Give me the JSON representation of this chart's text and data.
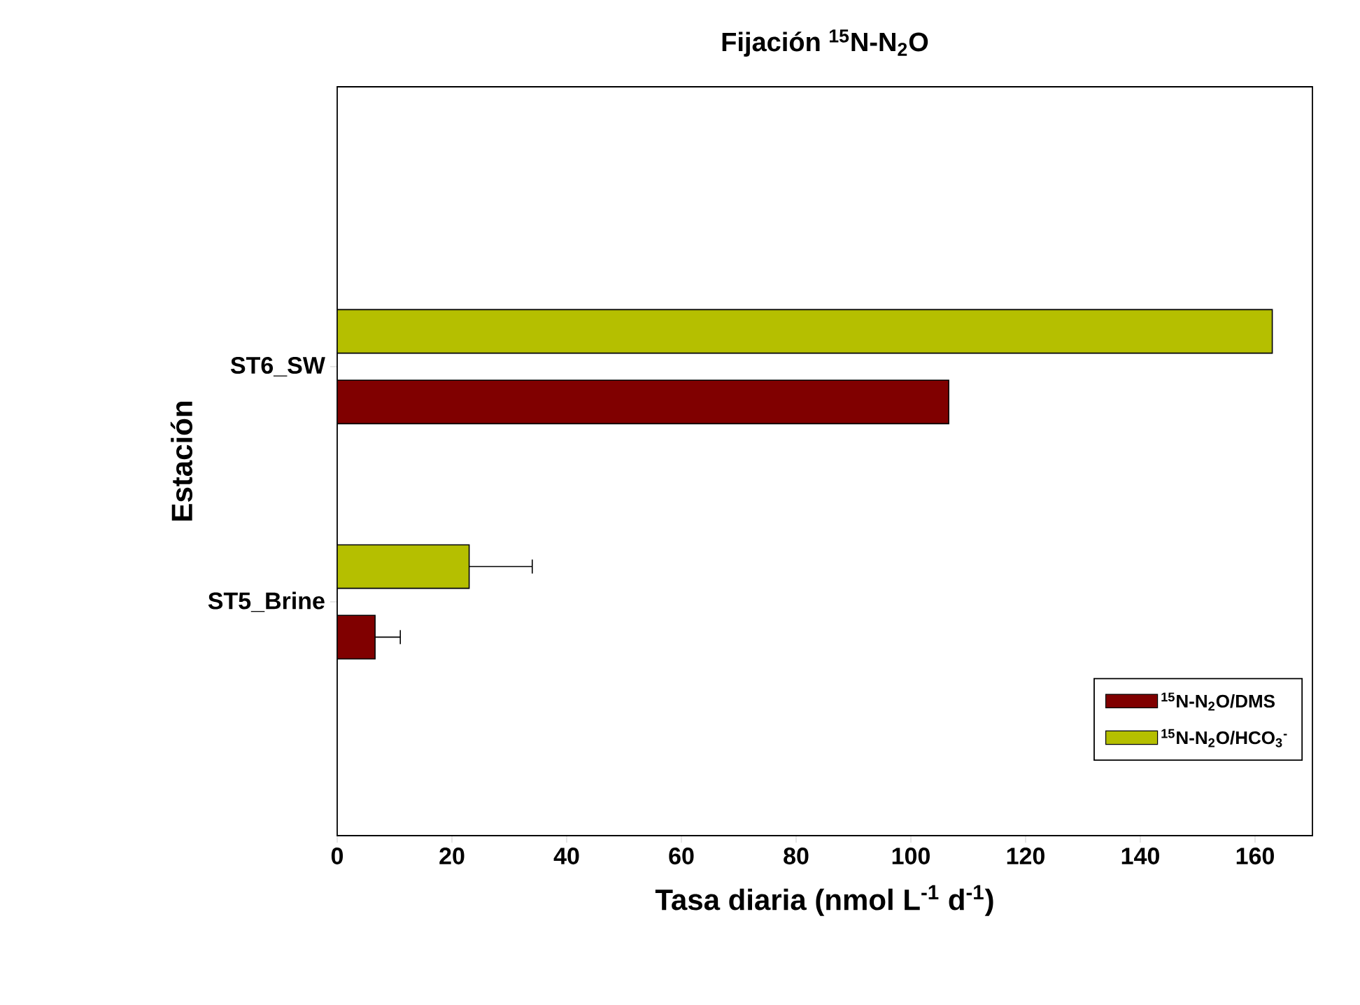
{
  "chart_data": {
    "type": "bar",
    "orientation": "horizontal",
    "title": "Fijación $^{15}$N-N$_{2}$O",
    "xlabel": "Tasa diaria (nmol L$^{-1}$ d$^{-1}$)",
    "ylabel": "Estación",
    "categories": [
      "ST6_SW",
      "ST5_Brine"
    ],
    "series": [
      {
        "name": "$^{15}$N-N$_{2}$O/DMS",
        "color": "#800000",
        "values": [
          106.6,
          6.6
        ],
        "errors": [
          null,
          4.4
        ]
      },
      {
        "name": "$^{15}$N-N$_{2}$O/HCO$_{3}$$^{-}$",
        "color": "#b5bf00",
        "values": [
          163,
          23
        ],
        "errors": [
          null,
          11
        ]
      }
    ],
    "xlim": [
      0,
      170
    ],
    "xticks": [
      0,
      20,
      40,
      60,
      80,
      100,
      120,
      140,
      160
    ],
    "legend": "bottom right",
    "grid": false
  }
}
